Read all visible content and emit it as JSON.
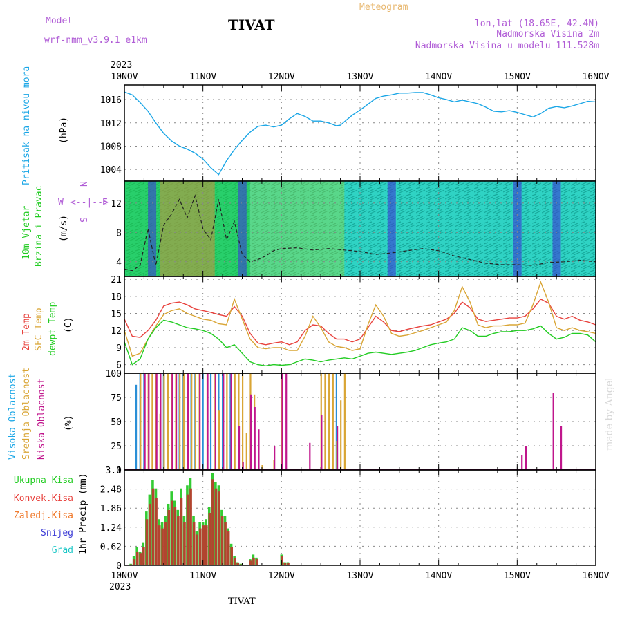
{
  "header": {
    "model_label": "Model",
    "model_name": "wrf-nmm_v3.9.1 e1km",
    "station": "TIVAT",
    "meteogram": "Meteogram",
    "lonlat": "lon,lat (18.65E, 42.4N)",
    "elev": "Nadmorska Visina 2m",
    "model_elev": "Nadmorska Visina u modelu 111.528m"
  },
  "footer": {
    "station": "TIVAT",
    "credit": "made by Angel"
  },
  "compass": {
    "n": "N",
    "s": "S",
    "e": "E",
    "w": "W"
  },
  "colors": {
    "pressure": "#1aa6e6",
    "temp2m": "#e8413c",
    "sfc": "#d9a535",
    "dewpt": "#22cc22",
    "high_cloud": "#2a8fd6",
    "mid_cloud": "#d9a535",
    "low_cloud": "#c0168c",
    "total_precip": "#33cc33",
    "conv_precip": "#b2452f"
  },
  "chart_data": [
    {
      "type": "line",
      "name": "pressure",
      "ylabel_left": "Pritisak na nivou mora",
      "ylabel_unit": "(hPa)",
      "ylim": [
        1002,
        1018.5
      ],
      "yticks": [
        "1016",
        "1012",
        "1008",
        "1004"
      ],
      "x_labels": [
        "10NOV",
        "11NOV",
        "12NOV",
        "13NOV",
        "14NOV",
        "15NOV",
        "16NOV"
      ],
      "x_year": "2023",
      "grid": true,
      "x": [
        0,
        0.1,
        0.2,
        0.3,
        0.4,
        0.5,
        0.6,
        0.7,
        0.8,
        0.9,
        1.0,
        1.1,
        1.2,
        1.3,
        1.4,
        1.5,
        1.6,
        1.7,
        1.8,
        1.9,
        2.0,
        2.1,
        2.2,
        2.3,
        2.4,
        2.5,
        2.6,
        2.7,
        2.75,
        2.8,
        2.9,
        3.0,
        3.1,
        3.2,
        3.3,
        3.4,
        3.5,
        3.6,
        3.7,
        3.8,
        3.9,
        4.0,
        4.1,
        4.2,
        4.3,
        4.4,
        4.5,
        4.6,
        4.7,
        4.8,
        4.9,
        5.0,
        5.1,
        5.2,
        5.3,
        5.4,
        5.5,
        5.6,
        5.7,
        5.8,
        5.9,
        6.0
      ],
      "y": [
        1017.3,
        1016.8,
        1015.5,
        1014.0,
        1012.0,
        1010.2,
        1008.9,
        1008.0,
        1007.5,
        1006.8,
        1005.8,
        1004.3,
        1003.1,
        1005.5,
        1007.4,
        1009.0,
        1010.4,
        1011.4,
        1011.6,
        1011.3,
        1011.6,
        1012.7,
        1013.6,
        1013.1,
        1012.3,
        1012.3,
        1012.0,
        1011.5,
        1011.6,
        1012.2,
        1013.3,
        1014.2,
        1015.2,
        1016.2,
        1016.6,
        1016.8,
        1017.1,
        1017.1,
        1017.2,
        1017.2,
        1016.8,
        1016.3,
        1016.0,
        1015.6,
        1015.9,
        1015.6,
        1015.3,
        1014.7,
        1014.0,
        1013.9,
        1014.1,
        1013.8,
        1013.4,
        1013.0,
        1013.6,
        1014.5,
        1014.8,
        1014.6,
        1014.9,
        1015.3,
        1015.7,
        1015.6
      ]
    },
    {
      "type": "line",
      "name": "wind",
      "ylabel_left": [
        "10m Vjetar",
        "Brzina i Pravac"
      ],
      "ylabel_unit": "(m/s)",
      "ylim": [
        2,
        15
      ],
      "yticks": [
        "12",
        "8",
        "4"
      ],
      "grid": true,
      "x": [
        0,
        0.1,
        0.2,
        0.3,
        0.4,
        0.5,
        0.6,
        0.7,
        0.8,
        0.9,
        1.0,
        1.1,
        1.2,
        1.3,
        1.4,
        1.5,
        1.6,
        1.7,
        1.8,
        1.9,
        2.0,
        2.2,
        2.4,
        2.6,
        2.8,
        3.0,
        3.2,
        3.4,
        3.6,
        3.8,
        4.0,
        4.2,
        4.4,
        4.6,
        4.8,
        5.0,
        5.2,
        5.4,
        5.6,
        5.8,
        6.0
      ],
      "y": [
        3,
        2.8,
        3.5,
        8.5,
        3.5,
        9.0,
        10.5,
        12.5,
        10.0,
        13.0,
        8.5,
        7.0,
        12.5,
        7.0,
        9.5,
        5.0,
        4.0,
        4.3,
        4.8,
        5.5,
        5.8,
        5.9,
        5.6,
        5.8,
        5.6,
        5.4,
        5.0,
        5.2,
        5.5,
        5.8,
        5.5,
        4.8,
        4.3,
        3.8,
        3.6,
        3.6,
        3.5,
        3.9,
        4.0,
        4.2,
        4.0
      ]
    },
    {
      "type": "line",
      "name": "temperature",
      "ylabel_left": [
        "2m Temp",
        "SFC Temp",
        "dewpt Temp"
      ],
      "ylabel_unit": "(C)",
      "ylim": [
        4.5,
        21.5
      ],
      "yticks": [
        "21",
        "18",
        "15",
        "12",
        "9",
        "6"
      ],
      "grid": true,
      "series": [
        {
          "name": "2m Temp",
          "color": "#e8413c",
          "x": [
            0,
            0.1,
            0.2,
            0.3,
            0.4,
            0.5,
            0.6,
            0.7,
            0.8,
            0.9,
            1.0,
            1.1,
            1.2,
            1.3,
            1.4,
            1.5,
            1.6,
            1.7,
            1.8,
            1.9,
            2.0,
            2.1,
            2.2,
            2.3,
            2.4,
            2.5,
            2.6,
            2.7,
            2.8,
            2.9,
            3.0,
            3.1,
            3.2,
            3.3,
            3.4,
            3.5,
            3.6,
            3.7,
            3.8,
            3.9,
            4.0,
            4.1,
            4.2,
            4.3,
            4.4,
            4.5,
            4.6,
            4.7,
            4.8,
            4.9,
            5.0,
            5.1,
            5.2,
            5.3,
            5.4,
            5.5,
            5.6,
            5.7,
            5.8,
            5.9,
            6.0
          ],
          "y": [
            14,
            11,
            10.8,
            12,
            13.8,
            16.3,
            16.8,
            17.0,
            16.5,
            15.8,
            15.5,
            15.2,
            14.8,
            14.5,
            16.2,
            14.5,
            11.5,
            9.8,
            9.5,
            9.8,
            10.0,
            9.5,
            10.0,
            12.0,
            13.0,
            12.8,
            11.5,
            10.5,
            10.5,
            10.0,
            10.5,
            12.5,
            14.5,
            13.5,
            12.0,
            11.8,
            12.2,
            12.5,
            12.8,
            13.0,
            13.5,
            14.0,
            15.0,
            17.0,
            16.0,
            14.0,
            13.6,
            13.8,
            14.0,
            14.2,
            14.2,
            14.5,
            15.8,
            17.5,
            16.8,
            14.5,
            14.0,
            14.5,
            13.8,
            13.5,
            13.0
          ]
        },
        {
          "name": "SFC Temp",
          "color": "#d9a535",
          "x": [
            0,
            0.1,
            0.2,
            0.3,
            0.4,
            0.5,
            0.6,
            0.7,
            0.8,
            0.9,
            1.0,
            1.1,
            1.2,
            1.3,
            1.4,
            1.5,
            1.6,
            1.7,
            1.8,
            1.9,
            2.0,
            2.1,
            2.2,
            2.3,
            2.4,
            2.5,
            2.6,
            2.7,
            2.8,
            2.9,
            3.0,
            3.1,
            3.2,
            3.3,
            3.4,
            3.5,
            3.6,
            3.7,
            3.8,
            3.9,
            4.0,
            4.1,
            4.2,
            4.3,
            4.4,
            4.5,
            4.6,
            4.7,
            4.8,
            4.9,
            5.0,
            5.1,
            5.2,
            5.3,
            5.4,
            5.5,
            5.6,
            5.7,
            5.8,
            5.9,
            6.0
          ],
          "y": [
            12,
            7.5,
            8,
            10.5,
            12.8,
            14.8,
            15.5,
            15.8,
            15.0,
            14.5,
            14.0,
            13.8,
            13.2,
            13.0,
            17.5,
            14.0,
            10.5,
            9.0,
            8.8,
            9.0,
            9.0,
            8.5,
            8.5,
            11.0,
            14.5,
            12.5,
            10.0,
            9.2,
            9.0,
            8.5,
            8.8,
            13.0,
            16.5,
            14.5,
            11.5,
            11.0,
            11.2,
            11.6,
            12.0,
            12.5,
            13.0,
            13.5,
            15.5,
            19.7,
            17.0,
            13.0,
            12.5,
            12.8,
            12.8,
            13.0,
            13.0,
            13.3,
            16.5,
            20.5,
            17.0,
            12.5,
            12.0,
            12.5,
            12.0,
            11.8,
            11.5
          ]
        },
        {
          "name": "dewpt Temp",
          "color": "#22cc22",
          "x": [
            0,
            0.1,
            0.2,
            0.3,
            0.4,
            0.5,
            0.6,
            0.7,
            0.8,
            0.9,
            1.0,
            1.1,
            1.2,
            1.3,
            1.4,
            1.5,
            1.6,
            1.7,
            1.8,
            1.9,
            2.0,
            2.1,
            2.2,
            2.3,
            2.4,
            2.5,
            2.6,
            2.7,
            2.8,
            2.9,
            3.0,
            3.1,
            3.2,
            3.3,
            3.4,
            3.5,
            3.6,
            3.7,
            3.8,
            3.9,
            4.0,
            4.1,
            4.2,
            4.3,
            4.4,
            4.5,
            4.6,
            4.7,
            4.8,
            4.9,
            5.0,
            5.1,
            5.2,
            5.3,
            5.4,
            5.5,
            5.6,
            5.7,
            5.8,
            5.9,
            6.0
          ],
          "y": [
            10,
            6,
            7,
            10.5,
            12.5,
            13.8,
            13.5,
            13.0,
            12.5,
            12.3,
            12.0,
            11.5,
            10.5,
            9.0,
            9.5,
            8.0,
            6.5,
            6.0,
            5.8,
            6.0,
            5.9,
            6.0,
            6.5,
            7.0,
            6.8,
            6.5,
            6.8,
            7.0,
            7.2,
            7.0,
            7.5,
            8.0,
            8.2,
            8.0,
            7.8,
            8.0,
            8.2,
            8.5,
            9.0,
            9.5,
            9.8,
            10.0,
            10.5,
            12.5,
            12.0,
            11.0,
            11.0,
            11.5,
            11.8,
            11.8,
            12.0,
            12.0,
            12.3,
            12.8,
            11.5,
            10.5,
            10.8,
            11.5,
            11.5,
            11.2,
            10.0
          ]
        }
      ]
    },
    {
      "type": "bar",
      "name": "cloud",
      "ylabel_left": [
        "Visoka Oblacnost",
        "Srednja Oblacnost",
        "Niska Oblacnost"
      ],
      "ylabel_unit": "(%)",
      "ylim": [
        0,
        100
      ],
      "yticks": [
        "100",
        "75",
        "50",
        "25",
        "0"
      ],
      "series": [
        {
          "name": "Visoka Oblacnost",
          "color": "#2a8fd6",
          "x": [
            0.15,
            0.2,
            0.25,
            0.5,
            0.55,
            0.7,
            0.75,
            0.85,
            0.9,
            1.0,
            1.1,
            1.2,
            1.25,
            1.35,
            2.7
          ],
          "y": [
            88,
            100,
            100,
            100,
            100,
            100,
            100,
            100,
            100,
            100,
            100,
            100,
            100,
            100,
            100
          ]
        },
        {
          "name": "Srednja Oblacnost",
          "color": "#d9a535",
          "x": [
            0.2,
            0.3,
            0.35,
            0.4,
            0.45,
            0.5,
            0.55,
            0.6,
            0.65,
            0.7,
            0.75,
            0.8,
            0.85,
            0.9,
            0.95,
            1.05,
            1.15,
            1.2,
            1.3,
            1.4,
            1.45,
            1.5,
            1.55,
            1.6,
            1.65,
            1.75,
            1.9,
            2.0,
            2.5,
            2.55,
            2.6,
            2.65,
            2.7,
            2.75,
            2.8
          ],
          "y": [
            100,
            100,
            100,
            100,
            58,
            100,
            100,
            100,
            100,
            100,
            100,
            100,
            100,
            100,
            100,
            100,
            100,
            62,
            100,
            100,
            100,
            100,
            38,
            100,
            78,
            5,
            10,
            100,
            100,
            100,
            100,
            100,
            30,
            72,
            100
          ]
        },
        {
          "name": "Niska Oblacnost",
          "color": "#c0168c",
          "x": [
            0.25,
            0.3,
            0.4,
            0.45,
            0.6,
            0.65,
            0.8,
            0.95,
            1.05,
            1.15,
            1.25,
            1.35,
            1.45,
            1.5,
            1.6,
            1.65,
            1.7,
            1.9,
            2.0,
            2.05,
            2.35,
            2.5,
            2.7,
            5.05,
            5.1,
            5.45,
            5.55
          ],
          "y": [
            100,
            100,
            100,
            100,
            100,
            100,
            100,
            100,
            100,
            100,
            100,
            100,
            45,
            8,
            78,
            65,
            42,
            25,
            100,
            100,
            28,
            57,
            45,
            15,
            25,
            80,
            45
          ]
        }
      ]
    },
    {
      "type": "bar",
      "name": "precip",
      "ylabel_left": [
        "Ukupna Kisa",
        "Konvek.Kisa",
        "Zaledj.Kisa",
        "Snijeg",
        "Grad"
      ],
      "ylabel_unit": "1hr Precip (mm)",
      "ylim": [
        0,
        3.1
      ],
      "yticks": [
        "3.1",
        "2.48",
        "1.86",
        "1.24",
        "0.62",
        "0"
      ],
      "series": [
        {
          "name": "Ukupna Kisa",
          "color": "#33cc33",
          "x": [
            0.08,
            0.12,
            0.16,
            0.2,
            0.24,
            0.28,
            0.32,
            0.36,
            0.4,
            0.44,
            0.48,
            0.52,
            0.56,
            0.6,
            0.64,
            0.68,
            0.72,
            0.76,
            0.8,
            0.84,
            0.88,
            0.92,
            0.96,
            1.0,
            1.04,
            1.08,
            1.12,
            1.16,
            1.2,
            1.24,
            1.28,
            1.32,
            1.36,
            1.4,
            1.44,
            1.48,
            1.6,
            1.64,
            1.68,
            2.0,
            2.04,
            2.08
          ],
          "y": [
            0.05,
            0.3,
            0.6,
            0.45,
            0.75,
            1.75,
            2.3,
            2.78,
            2.5,
            1.5,
            1.4,
            1.6,
            2.0,
            2.4,
            2.1,
            1.8,
            2.5,
            1.6,
            2.6,
            2.85,
            1.6,
            1.1,
            1.4,
            1.4,
            1.5,
            1.9,
            3.0,
            2.7,
            2.6,
            1.8,
            1.6,
            1.2,
            0.7,
            0.3,
            0.1,
            0.05,
            0.2,
            0.35,
            0.25,
            0.35,
            0.1,
            0.1
          ]
        },
        {
          "name": "Konvek.Kisa",
          "color": "#b2452f",
          "x": [
            0.08,
            0.12,
            0.16,
            0.2,
            0.24,
            0.28,
            0.32,
            0.36,
            0.4,
            0.44,
            0.48,
            0.52,
            0.56,
            0.6,
            0.64,
            0.68,
            0.72,
            0.76,
            0.8,
            0.84,
            0.88,
            0.92,
            0.96,
            1.0,
            1.04,
            1.08,
            1.12,
            1.16,
            1.2,
            1.24,
            1.28,
            1.32,
            1.36,
            1.4,
            1.44,
            1.48,
            1.6,
            1.64,
            1.68,
            2.0,
            2.04,
            2.08
          ],
          "y": [
            0.03,
            0.2,
            0.45,
            0.4,
            0.6,
            1.5,
            2.0,
            2.5,
            2.2,
            1.3,
            1.2,
            1.4,
            1.8,
            2.1,
            1.9,
            1.6,
            2.2,
            1.4,
            2.3,
            2.5,
            1.4,
            1.0,
            1.2,
            1.3,
            1.3,
            1.7,
            2.8,
            2.5,
            2.4,
            1.6,
            1.4,
            1.1,
            0.6,
            0.25,
            0.08,
            0.03,
            0.15,
            0.25,
            0.2,
            0.3,
            0.08,
            0.08
          ]
        }
      ]
    }
  ]
}
